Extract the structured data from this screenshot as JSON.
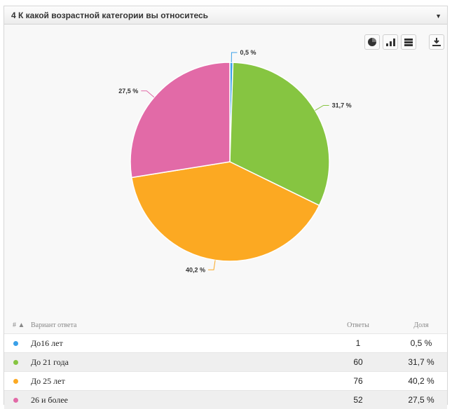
{
  "header": {
    "title": "4 К какой возрастной категории вы относитесь",
    "caret": "▼"
  },
  "toolbar": {
    "buttons": [
      {
        "icon": "pie-chart-icon"
      },
      {
        "icon": "bar-chart-icon"
      },
      {
        "icon": "table-icon"
      },
      {
        "icon": "download-icon"
      }
    ]
  },
  "table": {
    "headers": {
      "num": "# ▲",
      "option": "Вариант ответа",
      "count": "Ответы",
      "share": "Доля"
    },
    "rows": [
      {
        "label": "До16 лет",
        "count": "1",
        "share": "0,5 %"
      },
      {
        "label": "До 21 года",
        "count": "60",
        "share": "31,7 %"
      },
      {
        "label": "До 25 лет",
        "count": "76",
        "share": "40,2 %"
      },
      {
        "label": "26 и более",
        "count": "52",
        "share": "27,5 %"
      }
    ]
  },
  "chart_data": {
    "type": "pie",
    "categories": [
      "До16 лет",
      "До 21 года",
      "До 25 лет",
      "26 и более"
    ],
    "values": [
      0.5,
      31.7,
      40.2,
      27.5
    ],
    "data_labels": [
      "0,5 %",
      "31,7 %",
      "40,2 %",
      "27,5 %"
    ],
    "colors": [
      "#3aa0e8",
      "#86c541",
      "#fca922",
      "#e26aa7"
    ],
    "title": "4 К какой возрастной категории вы относитесь"
  }
}
